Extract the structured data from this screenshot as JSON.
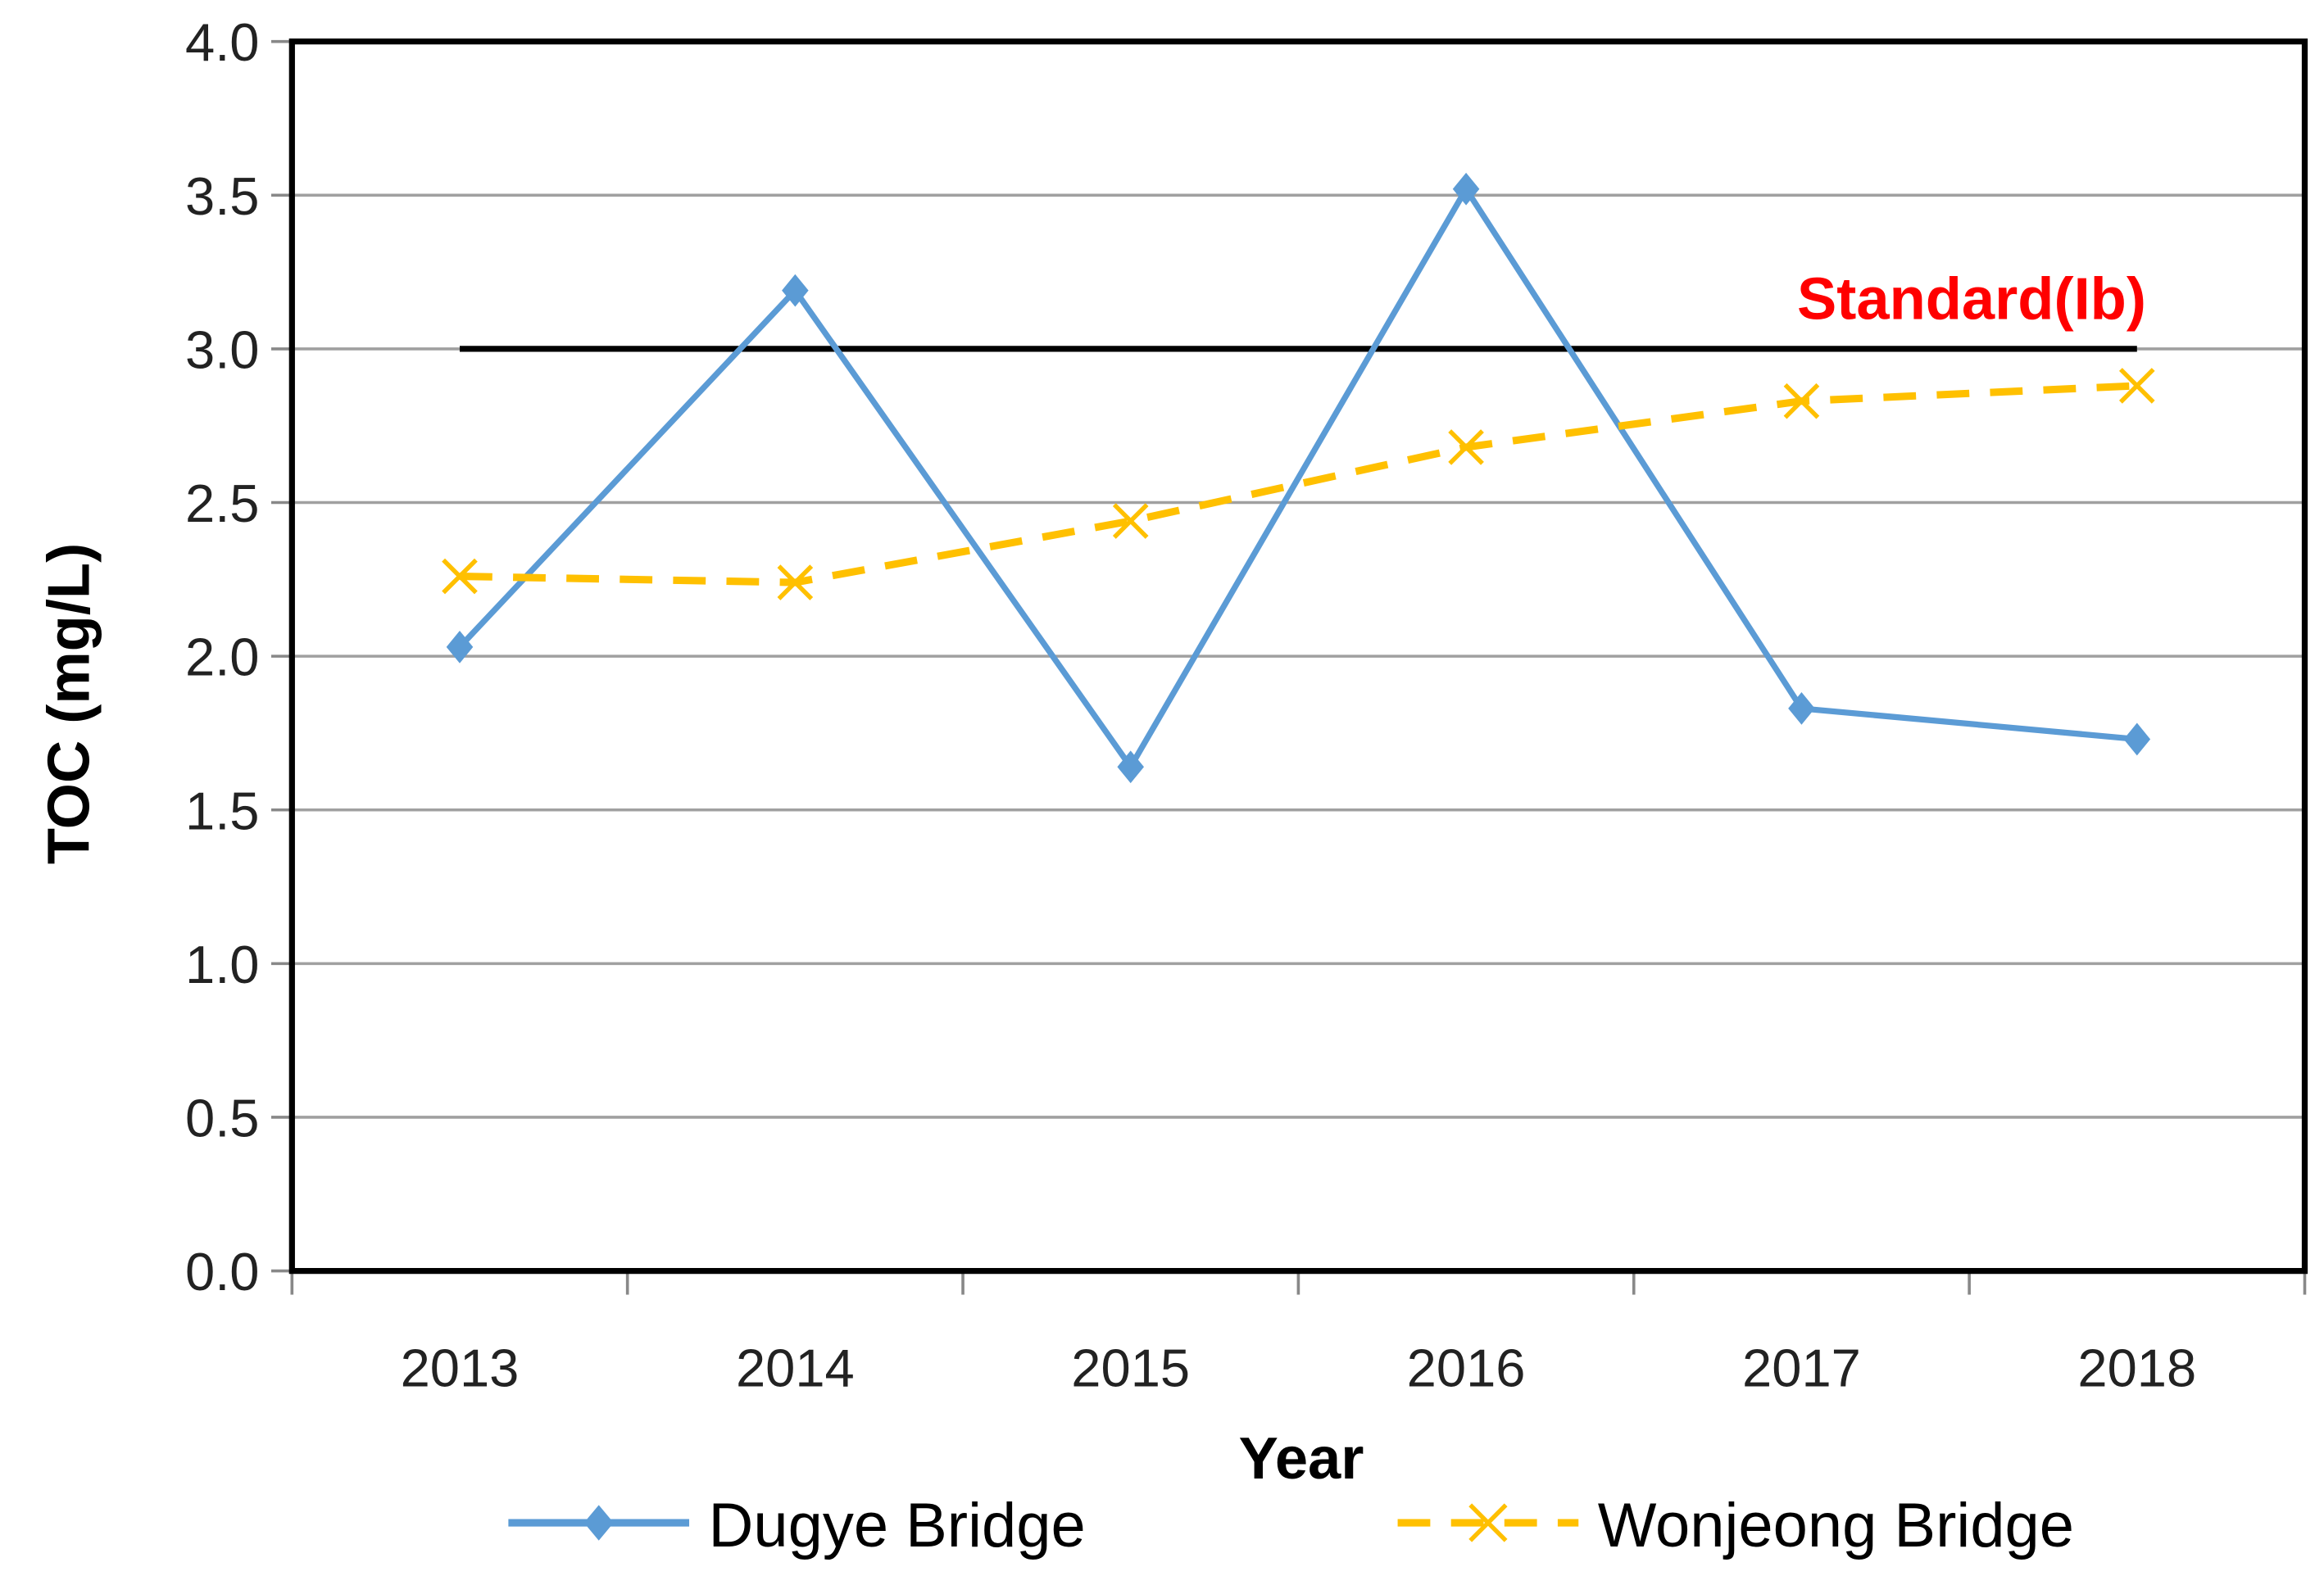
{
  "chart_data": {
    "type": "line",
    "title": "",
    "xlabel": "Year",
    "ylabel": "TOC (mg/L)",
    "categories": [
      "2013",
      "2014",
      "2015",
      "2016",
      "2017",
      "2018"
    ],
    "ylim": [
      0,
      4.0
    ],
    "yticks": [
      "0.0",
      "0.5",
      "1.0",
      "1.5",
      "2.0",
      "2.5",
      "3.0",
      "3.5",
      "4.0"
    ],
    "grid": true,
    "legend_position": "bottom",
    "series": [
      {
        "name": "Dugye Bridge",
        "color": "#5b9bd5",
        "marker": "diamond",
        "style": "solid",
        "values": [
          2.03,
          3.19,
          1.64,
          3.52,
          1.83,
          1.73
        ]
      },
      {
        "name": "Wonjeong Bridge",
        "color": "#ffc000",
        "marker": "x",
        "style": "dashed",
        "values": [
          2.26,
          2.24,
          2.44,
          2.68,
          2.83,
          2.88
        ]
      }
    ],
    "reference_line": {
      "label": "Standard(Ib)",
      "value": 3.0,
      "color": "#000000",
      "label_color": "#ff0000"
    }
  }
}
